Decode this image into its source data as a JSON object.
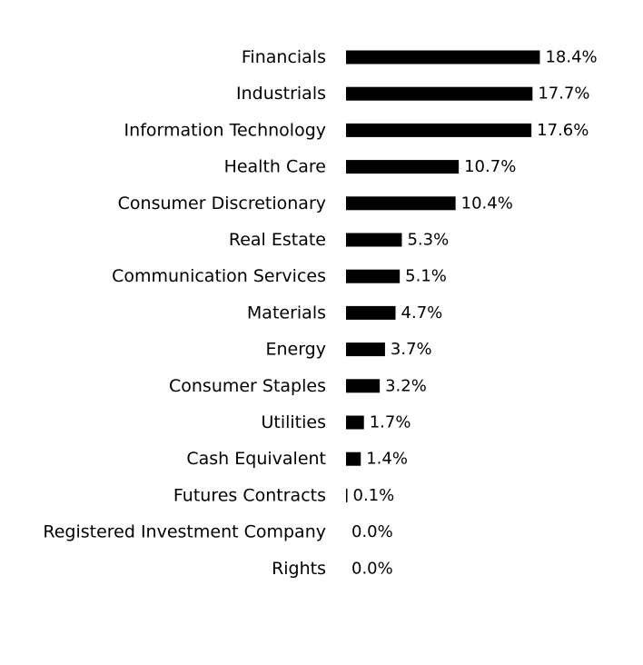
{
  "chart_data": {
    "type": "bar",
    "orientation": "horizontal",
    "categories": [
      "Financials",
      "Industrials",
      "Information Technology",
      "Health Care",
      "Consumer Discretionary",
      "Real Estate",
      "Communication Services",
      "Materials",
      "Energy",
      "Consumer Staples",
      "Utilities",
      "Cash Equivalent",
      "Futures Contracts",
      "Registered Investment Company",
      "Rights"
    ],
    "values": [
      18.4,
      17.7,
      17.6,
      10.7,
      10.4,
      5.3,
      5.1,
      4.7,
      3.7,
      3.2,
      1.7,
      1.4,
      0.1,
      0.0,
      0.0
    ],
    "value_labels": [
      "18.4%",
      "17.7%",
      "17.6%",
      "10.7%",
      "10.4%",
      "5.3%",
      "5.1%",
      "4.7%",
      "3.7%",
      "3.2%",
      "1.7%",
      "1.4%",
      "0.1%",
      "0.0%",
      "0.0%"
    ],
    "bar_color": "#000000",
    "grid": false,
    "legend": "none"
  }
}
